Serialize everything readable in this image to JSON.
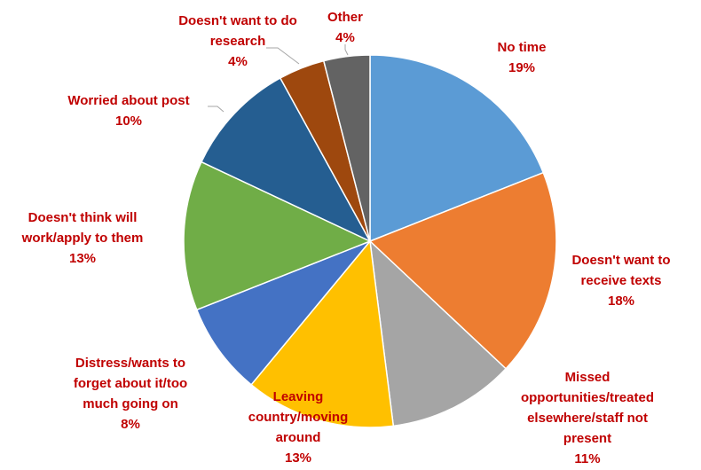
{
  "chart_data": {
    "type": "pie",
    "title": "",
    "label_color": "#c00000",
    "slices": [
      {
        "label_lines": [
          "No time"
        ],
        "value": 19,
        "value_label": "19%",
        "color": "#5b9bd5"
      },
      {
        "label_lines": [
          "Doesn't want to",
          "receive texts"
        ],
        "value": 18,
        "value_label": "18%",
        "color": "#ed7d31"
      },
      {
        "label_lines": [
          "Missed",
          "opportunities/treated",
          "elsewhere/staff not",
          "present"
        ],
        "value": 11,
        "value_label": "11%",
        "color": "#a5a5a5"
      },
      {
        "label_lines": [
          "Leaving",
          "country/moving",
          "around"
        ],
        "value": 13,
        "value_label": "13%",
        "color": "#ffc000"
      },
      {
        "label_lines": [
          "Distress/wants to",
          "forget about it/too",
          "much going on"
        ],
        "value": 8,
        "value_label": "8%",
        "color": "#4472c4"
      },
      {
        "label_lines": [
          "Doesn't think will",
          "work/apply to them"
        ],
        "value": 13,
        "value_label": "13%",
        "color": "#70ad47"
      },
      {
        "label_lines": [
          "Worried about post"
        ],
        "value": 10,
        "value_label": "10%",
        "color": "#255e91"
      },
      {
        "label_lines": [
          "Doesn't want to do",
          "research"
        ],
        "value": 4,
        "value_label": "4%",
        "color": "#9e480e"
      },
      {
        "label_lines": [
          "Other"
        ],
        "value": 4,
        "value_label": "4%",
        "color": "#636363"
      }
    ]
  }
}
